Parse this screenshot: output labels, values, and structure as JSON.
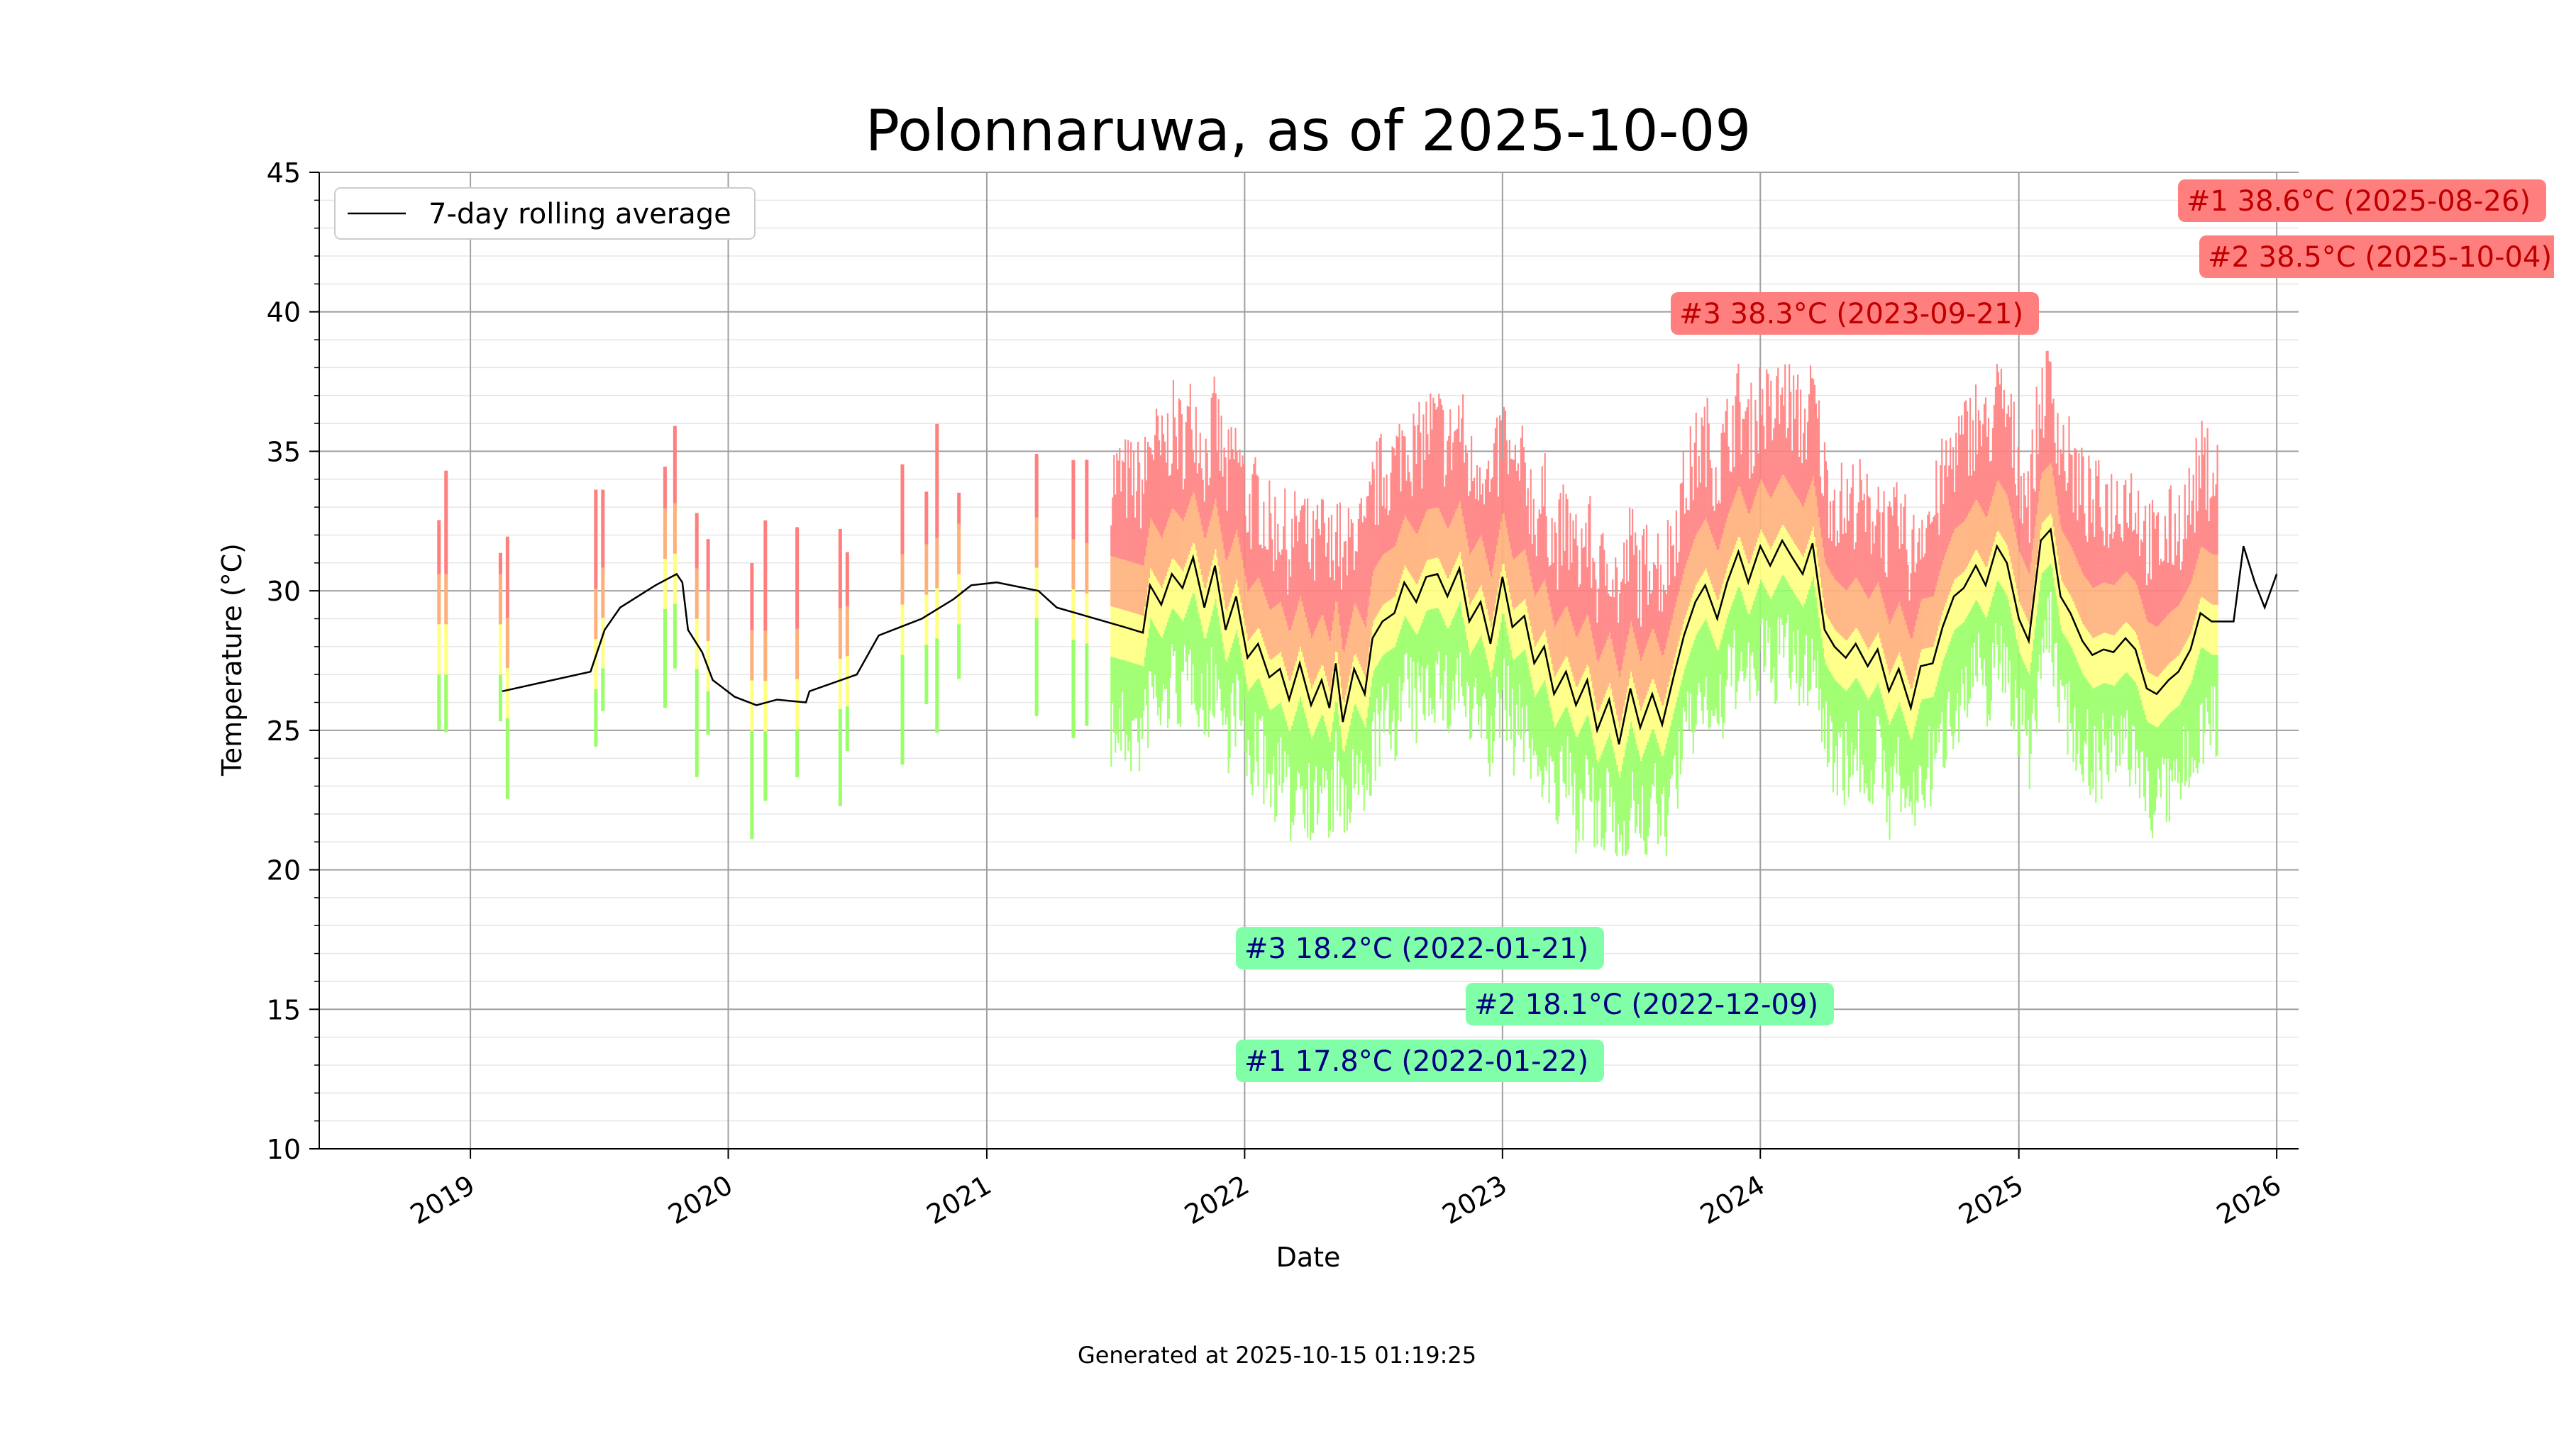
{
  "chart_data": {
    "type": "bar",
    "title": "Polonnaruwa, as of 2025-10-09",
    "xlabel": "Date",
    "ylabel": "Temperature (°C)",
    "footer": "Generated at 2025-10-15 01:19:25",
    "xlim": [
      "2018-06-01",
      "2026-02-01"
    ],
    "ylim": [
      10,
      45
    ],
    "x_ticks": [
      "2019",
      "2020",
      "2021",
      "2022",
      "2023",
      "2024",
      "2025",
      "2026"
    ],
    "y_ticks": [
      10,
      15,
      20,
      25,
      30,
      35,
      40,
      45
    ],
    "grid": true,
    "legend": {
      "position": "top-left",
      "entries": [
        "7-day rolling average"
      ]
    },
    "colors": {
      "hot": "#ff7f7f",
      "warm": "#ffb07a",
      "mild": "#ffff80",
      "cool": "#99ff66",
      "avg_line": "#000000",
      "max_box": "#ff7f7f",
      "min_box": "#80ffa8",
      "max_text": "#c00000",
      "min_text": "#000080"
    },
    "max_annotations": [
      {
        "label": "#1 38.6°C (2025-08-26)",
        "date": "2025-08-26",
        "value": 38.6
      },
      {
        "label": "#2 38.5°C (2025-10-04)",
        "date": "2025-10-04",
        "value": 38.5
      },
      {
        "label": "#3 38.3°C (2023-09-21)",
        "date": "2023-09-21",
        "value": 38.3
      }
    ],
    "min_annotations": [
      {
        "label": "#3 18.2°C (2022-01-21)",
        "date": "2022-01-21",
        "value": 18.2
      },
      {
        "label": "#2 18.1°C (2022-12-09)",
        "date": "2022-12-09",
        "value": 18.1
      },
      {
        "label": "#1 17.8°C (2022-01-22)",
        "date": "2022-01-22",
        "value": 17.8
      }
    ],
    "series": [
      {
        "name": "7-day rolling average",
        "type": "line",
        "points": [
          [
            "2019-02-15",
            26.4
          ],
          [
            "2019-06-20",
            27.1
          ],
          [
            "2019-07-10",
            28.6
          ],
          [
            "2019-08-01",
            29.4
          ],
          [
            "2019-09-20",
            30.2
          ],
          [
            "2019-10-20",
            30.6
          ],
          [
            "2019-10-28",
            30.3
          ],
          [
            "2019-11-05",
            28.6
          ],
          [
            "2019-11-25",
            27.8
          ],
          [
            "2019-12-10",
            26.8
          ],
          [
            "2020-01-10",
            26.2
          ],
          [
            "2020-02-10",
            25.9
          ],
          [
            "2020-03-10",
            26.1
          ],
          [
            "2020-04-20",
            26.0
          ],
          [
            "2020-04-25",
            26.4
          ],
          [
            "2020-07-01",
            27.0
          ],
          [
            "2020-08-01",
            28.4
          ],
          [
            "2020-10-01",
            29.0
          ],
          [
            "2020-11-15",
            29.7
          ],
          [
            "2020-12-10",
            30.2
          ],
          [
            "2021-01-15",
            30.3
          ],
          [
            "2021-03-15",
            30.0
          ],
          [
            "2021-04-10",
            29.4
          ],
          [
            "2021-07-15",
            28.7
          ],
          [
            "2021-08-10",
            28.5
          ],
          [
            "2021-08-20",
            30.2
          ],
          [
            "2021-09-05",
            29.5
          ],
          [
            "2021-09-20",
            30.6
          ],
          [
            "2021-10-05",
            30.1
          ],
          [
            "2021-10-20",
            31.2
          ],
          [
            "2021-11-05",
            29.4
          ],
          [
            "2021-11-20",
            30.9
          ],
          [
            "2021-12-05",
            28.6
          ],
          [
            "2021-12-20",
            29.8
          ],
          [
            "2022-01-05",
            27.6
          ],
          [
            "2022-01-20",
            28.1
          ],
          [
            "2022-02-05",
            26.9
          ],
          [
            "2022-02-20",
            27.2
          ],
          [
            "2022-03-05",
            26.1
          ],
          [
            "2022-03-20",
            27.4
          ],
          [
            "2022-04-05",
            25.9
          ],
          [
            "2022-04-20",
            26.8
          ],
          [
            "2022-05-01",
            25.8
          ],
          [
            "2022-05-10",
            27.4
          ],
          [
            "2022-05-20",
            25.3
          ],
          [
            "2022-06-05",
            27.2
          ],
          [
            "2022-06-20",
            26.3
          ],
          [
            "2022-07-01",
            28.3
          ],
          [
            "2022-07-15",
            28.9
          ],
          [
            "2022-08-01",
            29.2
          ],
          [
            "2022-08-15",
            30.3
          ],
          [
            "2022-09-01",
            29.6
          ],
          [
            "2022-09-15",
            30.5
          ],
          [
            "2022-10-01",
            30.6
          ],
          [
            "2022-10-15",
            29.8
          ],
          [
            "2022-11-01",
            30.8
          ],
          [
            "2022-11-15",
            28.9
          ],
          [
            "2022-12-01",
            29.6
          ],
          [
            "2022-12-15",
            28.1
          ],
          [
            "2023-01-01",
            30.5
          ],
          [
            "2023-01-15",
            28.7
          ],
          [
            "2023-02-01",
            29.1
          ],
          [
            "2023-02-15",
            27.4
          ],
          [
            "2023-03-01",
            28.0
          ],
          [
            "2023-03-15",
            26.3
          ],
          [
            "2023-04-01",
            27.1
          ],
          [
            "2023-04-15",
            25.9
          ],
          [
            "2023-05-01",
            26.8
          ],
          [
            "2023-05-15",
            25.0
          ],
          [
            "2023-06-01",
            26.1
          ],
          [
            "2023-06-15",
            24.5
          ],
          [
            "2023-07-01",
            26.5
          ],
          [
            "2023-07-15",
            25.1
          ],
          [
            "2023-08-01",
            26.3
          ],
          [
            "2023-08-15",
            25.2
          ],
          [
            "2023-09-01",
            27.0
          ],
          [
            "2023-09-15",
            28.4
          ],
          [
            "2023-10-01",
            29.6
          ],
          [
            "2023-10-15",
            30.2
          ],
          [
            "2023-11-01",
            29.0
          ],
          [
            "2023-11-15",
            30.3
          ],
          [
            "2023-12-01",
            31.4
          ],
          [
            "2023-12-15",
            30.3
          ],
          [
            "2024-01-01",
            31.6
          ],
          [
            "2024-01-15",
            30.9
          ],
          [
            "2024-02-01",
            31.8
          ],
          [
            "2024-02-15",
            31.2
          ],
          [
            "2024-03-01",
            30.6
          ],
          [
            "2024-03-15",
            31.7
          ],
          [
            "2024-04-01",
            28.6
          ],
          [
            "2024-04-15",
            28.0
          ],
          [
            "2024-05-01",
            27.6
          ],
          [
            "2024-05-15",
            28.1
          ],
          [
            "2024-06-01",
            27.3
          ],
          [
            "2024-06-15",
            27.9
          ],
          [
            "2024-07-01",
            26.4
          ],
          [
            "2024-07-15",
            27.2
          ],
          [
            "2024-08-01",
            25.8
          ],
          [
            "2024-08-15",
            27.3
          ],
          [
            "2024-09-01",
            27.4
          ],
          [
            "2024-09-15",
            28.7
          ],
          [
            "2024-10-01",
            29.8
          ],
          [
            "2024-10-15",
            30.1
          ],
          [
            "2024-11-01",
            30.9
          ],
          [
            "2024-11-15",
            30.2
          ],
          [
            "2024-12-01",
            31.6
          ],
          [
            "2024-12-15",
            31.0
          ],
          [
            "2025-01-01",
            29.0
          ],
          [
            "2025-01-15",
            28.2
          ],
          [
            "2025-02-01",
            31.8
          ],
          [
            "2025-02-15",
            32.2
          ],
          [
            "2025-03-01",
            29.8
          ],
          [
            "2025-03-15",
            29.2
          ],
          [
            "2025-04-01",
            28.2
          ],
          [
            "2025-04-15",
            27.7
          ],
          [
            "2025-05-01",
            27.9
          ],
          [
            "2025-05-15",
            27.8
          ],
          [
            "2025-06-01",
            28.3
          ],
          [
            "2025-06-15",
            27.9
          ],
          [
            "2025-07-01",
            26.5
          ],
          [
            "2025-07-15",
            26.3
          ],
          [
            "2025-08-01",
            26.8
          ],
          [
            "2025-08-15",
            27.1
          ],
          [
            "2025-09-01",
            27.9
          ],
          [
            "2025-09-15",
            29.2
          ],
          [
            "2025-10-01",
            28.9
          ],
          [
            "2025-10-15",
            28.9
          ],
          [
            "2025-11-01",
            28.9
          ],
          [
            "2025-11-15",
            31.6
          ],
          [
            "2025-12-01",
            30.3
          ],
          [
            "2025-12-15",
            29.4
          ],
          [
            "2026-01-01",
            30.6
          ]
        ]
      }
    ]
  }
}
